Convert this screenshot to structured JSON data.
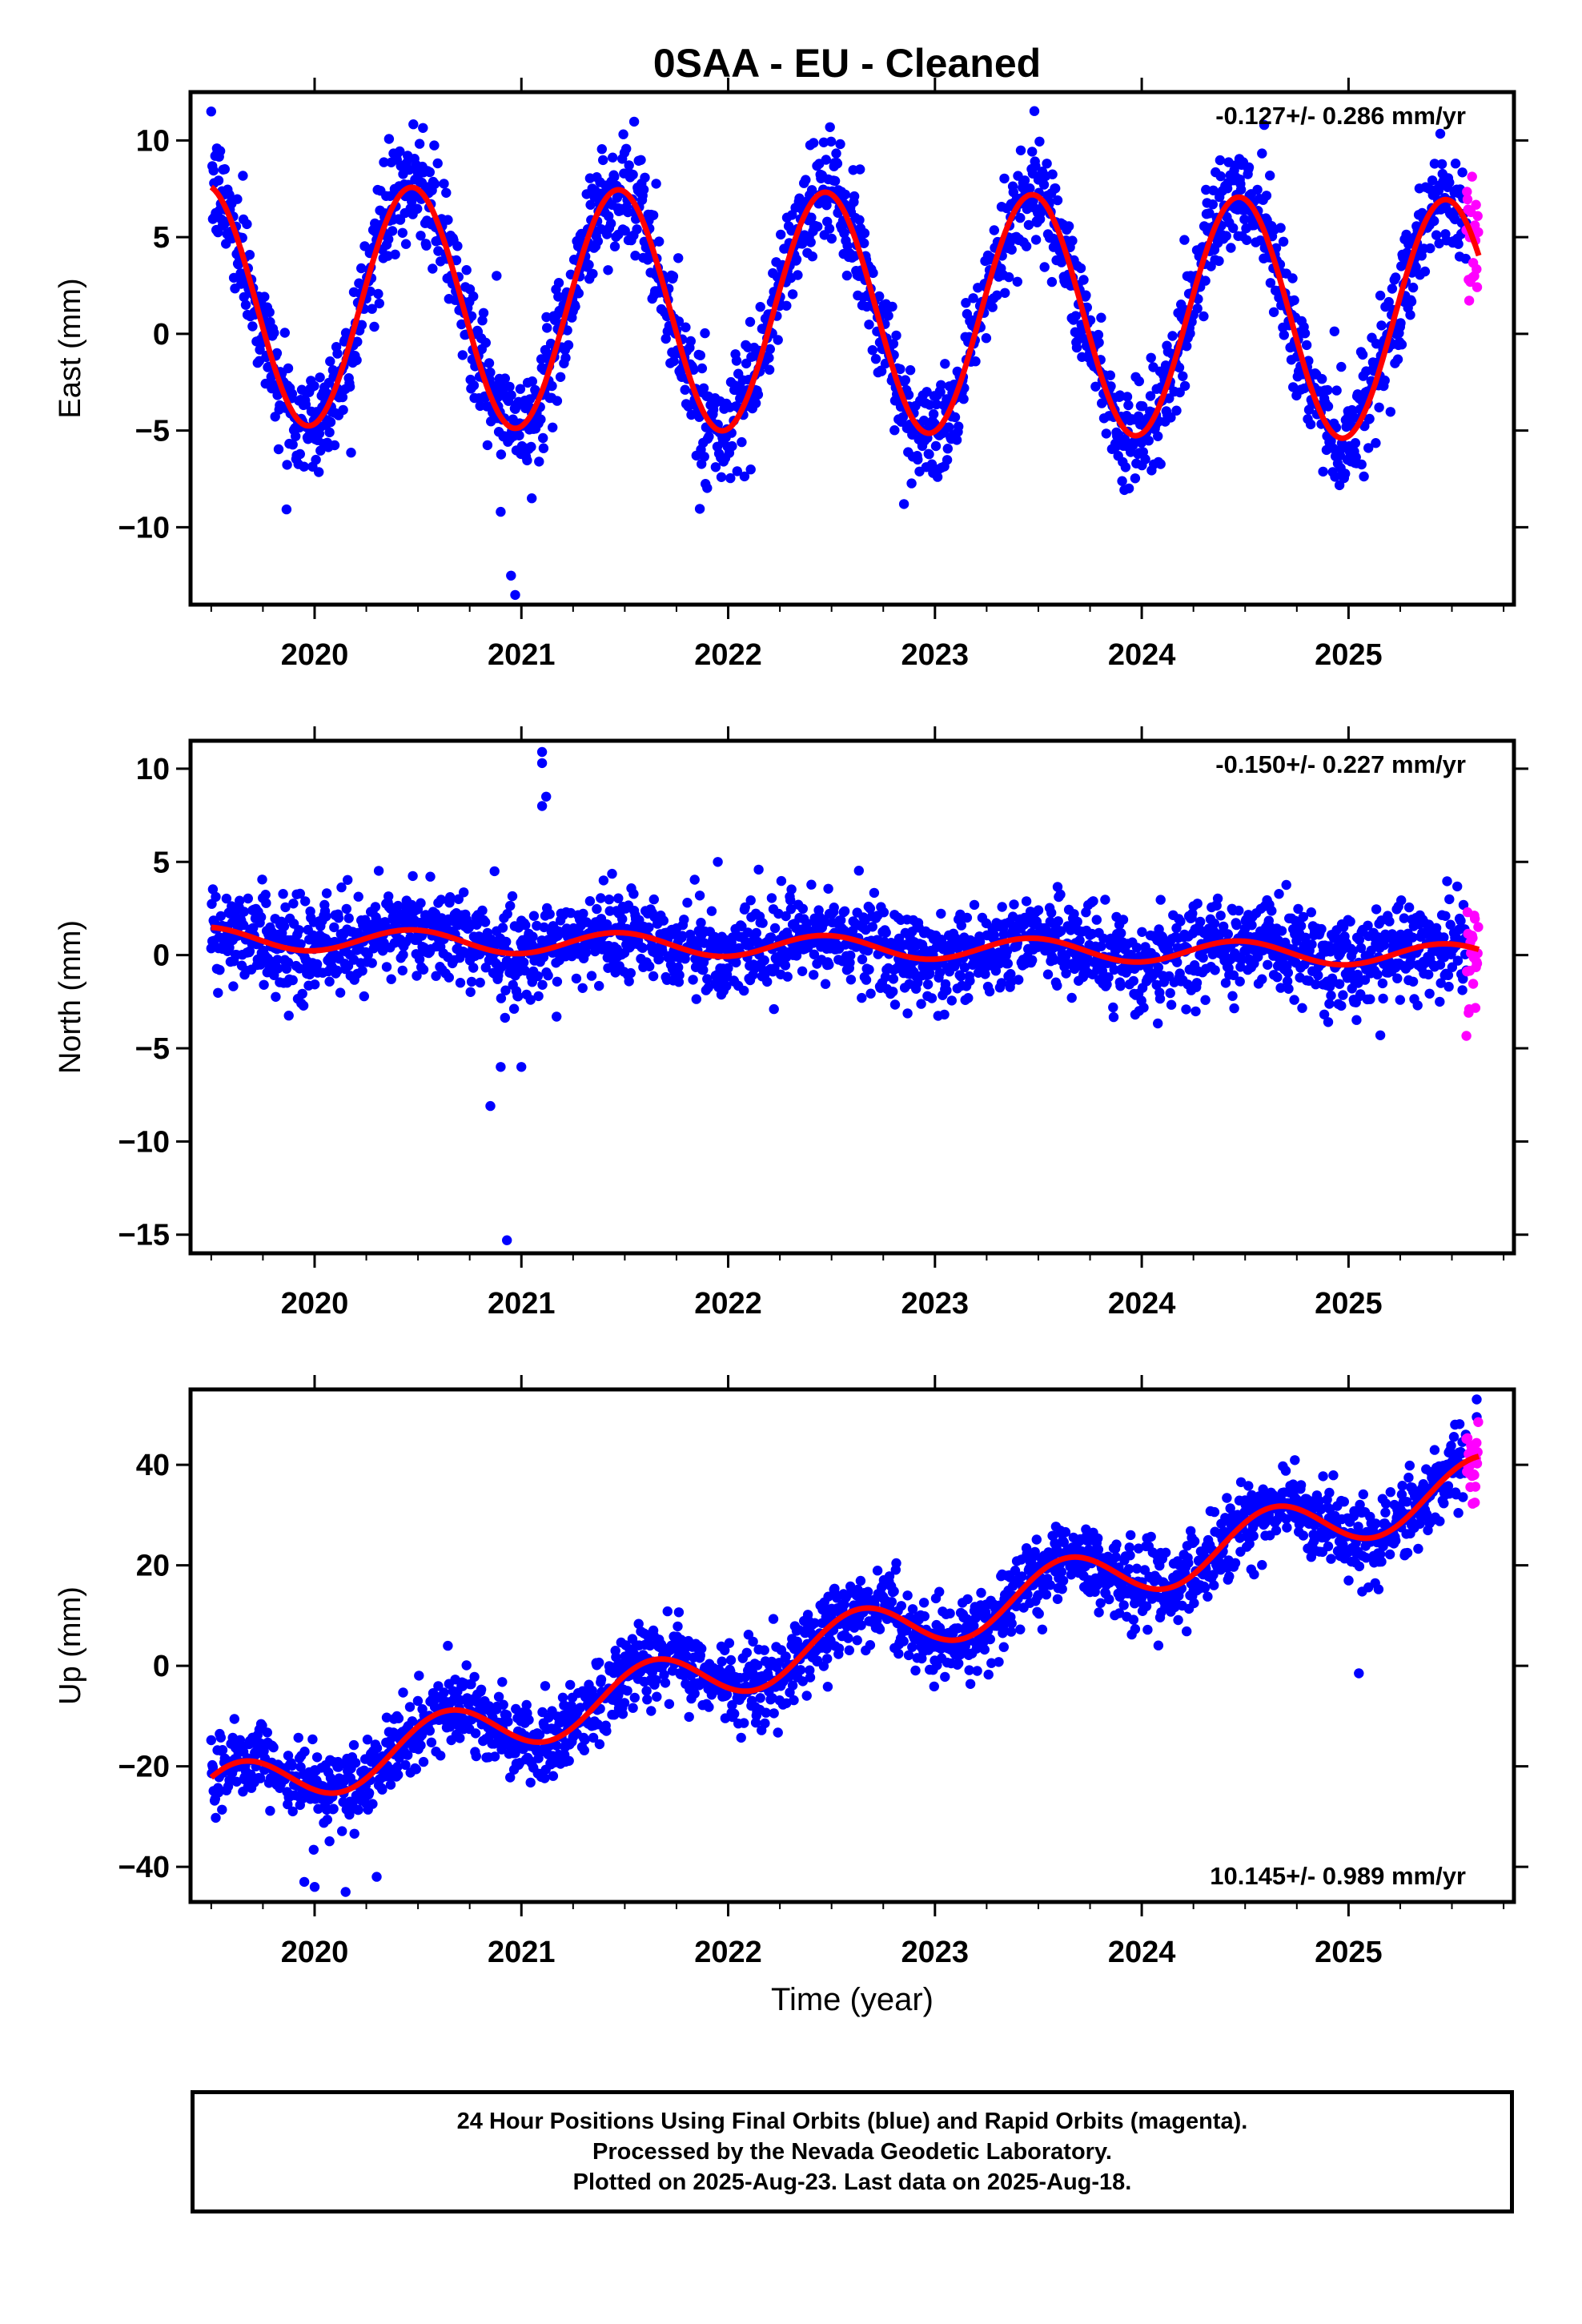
{
  "title": "0SAA  - EU - Cleaned",
  "chart_data": [
    {
      "type": "scatter",
      "component": "East",
      "ylabel": "East (mm)",
      "ylim": [
        -14,
        12.5
      ],
      "xlim": [
        2019.4,
        2025.8
      ],
      "yticks": [
        10,
        5,
        0,
        -5,
        -10
      ],
      "ytick_labels": [
        "10",
        "5",
        "0",
        "−5",
        "−10"
      ],
      "xticks": [
        2020,
        2021,
        2022,
        2023,
        2024,
        2025
      ],
      "xtick_labels": [
        "2020",
        "2021",
        "2022",
        "2023",
        "2024",
        "2025"
      ],
      "rate_text": "-0.127+/- 0.286 mm/yr",
      "rate_position": "top-right",
      "model": {
        "amplitude": 6.2,
        "offset": 1.5,
        "peak_phase": 0.47,
        "trend": -0.127
      },
      "scatter_sd": 1.4,
      "outliers": [
        [
          2020.88,
          3.0
        ],
        [
          2020.9,
          -9.2
        ],
        [
          2020.95,
          -12.5
        ],
        [
          2020.97,
          -13.5
        ],
        [
          2021.05,
          -8.5
        ],
        [
          2022.85,
          -8.8
        ],
        [
          2019.5,
          11.5
        ]
      ]
    },
    {
      "type": "scatter",
      "component": "North",
      "ylabel": "North (mm)",
      "ylim": [
        -16,
        11.5
      ],
      "xlim": [
        2019.4,
        2025.8
      ],
      "yticks": [
        10,
        5,
        0,
        -5,
        -10,
        -15
      ],
      "ytick_labels": [
        "10",
        "5",
        "0",
        "−5",
        "−10",
        "−15"
      ],
      "xticks": [
        2020,
        2021,
        2022,
        2023,
        2024,
        2025
      ],
      "xtick_labels": [
        "2020",
        "2021",
        "2022",
        "2023",
        "2024",
        "2025"
      ],
      "rate_text": "-0.150+/- 0.227 mm/yr",
      "rate_position": "top-right",
      "model": {
        "amplitude": 0.6,
        "offset": 0.9,
        "peak_phase": 0.47,
        "trend": -0.15
      },
      "scatter_sd": 1.2,
      "outliers": [
        [
          2021.1,
          10.9
        ],
        [
          2021.1,
          10.3
        ],
        [
          2021.12,
          8.5
        ],
        [
          2021.1,
          8.0
        ],
        [
          2020.85,
          -8.1
        ],
        [
          2020.9,
          -6.0
        ],
        [
          2021.0,
          -6.0
        ],
        [
          2020.93,
          -15.3
        ],
        [
          2020.87,
          4.5
        ],
        [
          2021.95,
          5.0
        ]
      ]
    },
    {
      "type": "scatter",
      "component": "Up",
      "ylabel": "Up (mm)",
      "xlabel": "Time (year)",
      "ylim": [
        -47,
        55
      ],
      "xlim": [
        2019.4,
        2025.8
      ],
      "yticks": [
        40,
        20,
        0,
        -20,
        -40
      ],
      "ytick_labels": [
        "40",
        "20",
        "0",
        "−20",
        "−40"
      ],
      "xticks": [
        2020,
        2021,
        2022,
        2023,
        2024,
        2025
      ],
      "xtick_labels": [
        "2020",
        "2021",
        "2022",
        "2023",
        "2024",
        "2025"
      ],
      "rate_text": "10.145+/- 0.989 mm/yr",
      "rate_position": "bottom-right",
      "model": {
        "amplitude": 5.5,
        "offset": -26.0,
        "peak_phase": 0.63,
        "trend": 10.145
      },
      "scatter_sd": 3.8,
      "outliers": [
        [
          2025.62,
          53.0
        ],
        [
          2025.62,
          49.5
        ],
        [
          2025.05,
          -1.5
        ],
        [
          2020.0,
          -44.0
        ],
        [
          2019.95,
          -43.0
        ],
        [
          2020.3,
          -42.0
        ],
        [
          2020.15,
          -45.0
        ]
      ]
    }
  ],
  "rapid_data_start": 2025.57,
  "last_data_year": 2025.63,
  "colors": {
    "final_orbits": "#0000ff",
    "rapid_orbits": "#ff00ff",
    "model": "#ff0000",
    "frame": "#000000"
  },
  "footer": {
    "line1": "24 Hour Positions Using Final Orbits (blue) and Rapid Orbits (magenta).",
    "line2": "Processed by the Nevada Geodetic Laboratory.",
    "line3": "Plotted on 2025-Aug-23. Last data on 2025-Aug-18."
  }
}
